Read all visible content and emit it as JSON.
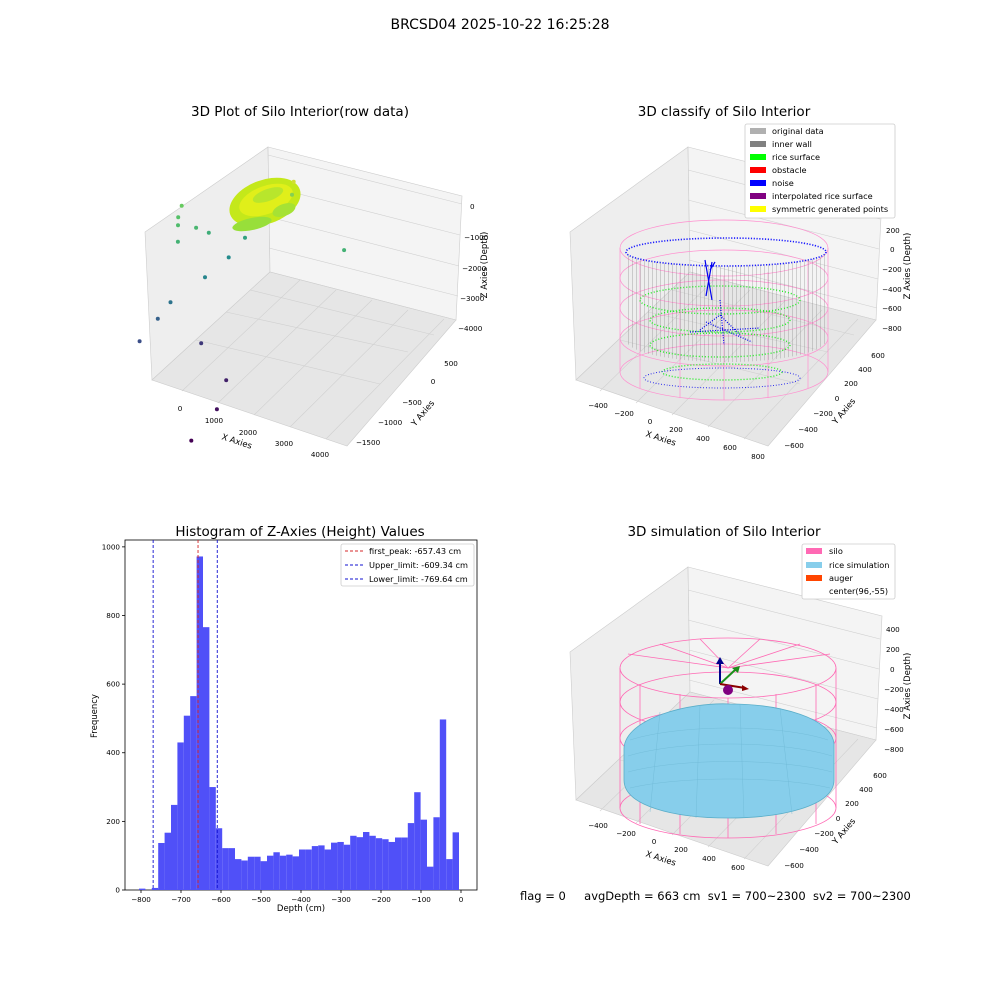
{
  "suptitle": "BRCSD04 2025-10-22 16:25:28",
  "status": {
    "flag": "flag = 0",
    "avg_depth": "avgDepth = 663 cm",
    "sv1": "sv1 = 700~2300",
    "sv2": "sv2 = 700~2300"
  },
  "colors": {
    "histogram_bar": "#5050f8",
    "first_peak": "#d62728",
    "limits": "#1010d0",
    "original_data": "#b0b0b0",
    "inner_wall": "#808080",
    "rice_surface": "#00ff00",
    "obstacle": "#ff0000",
    "noise": "#0000ff",
    "interpolated_rice_surface": "#800080",
    "symmetric_generated_points": "#ffff00",
    "silo": "#ff69b4",
    "rice_simulation": "#87ceeb",
    "auger": "#ff4500"
  },
  "chart_data": [
    {
      "type": "scatter",
      "title": "3D Plot of Silo Interior(row data)",
      "xlabel": "X Axies",
      "ylabel": "Y Axies",
      "zlabel": "Z Axies (Depth)",
      "x_ticks": [
        "0",
        "1000",
        "2000",
        "3000",
        "4000"
      ],
      "y_ticks": [
        "500",
        "0",
        "−500",
        "−1000",
        "−1500"
      ],
      "z_ticks": [
        "0",
        "−1000",
        "−2000",
        "−3000",
        "−4000"
      ],
      "points": [
        {
          "x": 200,
          "y": -100,
          "z": -1000
        },
        {
          "x": 180,
          "y": -150,
          "z": -1200
        },
        {
          "x": 250,
          "y": -200,
          "z": -1300
        },
        {
          "x": 400,
          "y": -300,
          "z": -1500
        },
        {
          "x": 600,
          "y": -100,
          "z": -1400
        },
        {
          "x": 800,
          "y": 0,
          "z": -1600
        },
        {
          "x": 1500,
          "y": 200,
          "z": -1800
        },
        {
          "x": 1200,
          "y": 100,
          "z": -2200
        },
        {
          "x": 1000,
          "y": -200,
          "z": -2300
        },
        {
          "x": 500,
          "y": -500,
          "z": -2600
        },
        {
          "x": 300,
          "y": -600,
          "z": -2900
        },
        {
          "x": 100,
          "y": -800,
          "z": -3200
        },
        {
          "x": 1200,
          "y": -400,
          "z": -3500
        },
        {
          "x": 2200,
          "y": -600,
          "z": -3800
        },
        {
          "x": 2400,
          "y": -900,
          "z": -4000
        },
        {
          "x": 2300,
          "y": -1300,
          "z": -4200
        },
        {
          "x": 4100,
          "y": 300,
          "z": -1500
        },
        {
          "x": 2500,
          "y": 400,
          "z": -800
        },
        {
          "x": 2700,
          "y": 300,
          "z": -300
        }
      ]
    },
    {
      "type": "scatter",
      "title": "3D classify of Silo Interior",
      "xlabel": "X Axies",
      "ylabel": "Y Axies",
      "zlabel": "Z Axies (Depth)",
      "x_ticks": [
        "−400",
        "−200",
        "0",
        "200",
        "400",
        "600",
        "800"
      ],
      "y_ticks": [
        "600",
        "400",
        "200",
        "0",
        "−200",
        "−400",
        "−600"
      ],
      "z_ticks": [
        "200",
        "0",
        "−200",
        "−400",
        "−600",
        "−800"
      ],
      "legend": [
        "original data",
        "inner wall",
        "rice surface",
        "obstacle",
        "noise",
        "interpolated rice surface",
        "symmetric generated points"
      ]
    },
    {
      "type": "bar",
      "title": "Histogram of Z-Axies (Height) Values",
      "xlabel": "Depth (cm)",
      "ylabel": "Frequency",
      "xlim": [
        -840,
        40
      ],
      "ylim": [
        0,
        1020
      ],
      "x_ticks": [
        -800,
        -700,
        -600,
        -500,
        -400,
        -300,
        -200,
        -100,
        0
      ],
      "y_ticks": [
        0,
        200,
        400,
        600,
        800,
        1000
      ],
      "bin_start": -805,
      "bin_width": 16,
      "values": [
        4,
        0,
        6,
        137,
        167,
        248,
        430,
        508,
        565,
        972,
        766,
        300,
        180,
        122,
        122,
        90,
        86,
        97,
        97,
        84,
        100,
        110,
        100,
        103,
        98,
        118,
        118,
        128,
        130,
        118,
        138,
        140,
        132,
        158,
        154,
        169,
        158,
        151,
        148,
        140,
        153,
        153,
        195,
        285,
        205,
        68,
        212,
        497,
        90,
        168
      ],
      "lines": [
        {
          "label": "first_peak: -657.43 cm",
          "x": -657.43,
          "color": "#d62728"
        },
        {
          "label": "Upper_limit: -609.34 cm",
          "x": -609.34,
          "color": "#1010d0"
        },
        {
          "label": "Lower_limit: -769.64 cm",
          "x": -769.64,
          "color": "#1010d0"
        }
      ],
      "legend_position": "top-right"
    },
    {
      "type": "surface",
      "title": "3D simulation of Silo Interior",
      "xlabel": "X Axies",
      "ylabel": "Y Axies",
      "zlabel": "Z Axies (Depth)",
      "x_ticks": [
        "−400",
        "−200",
        "0",
        "200",
        "400",
        "600"
      ],
      "y_ticks": [
        "600",
        "400",
        "200",
        "0",
        "−200",
        "−400",
        "−600"
      ],
      "z_ticks": [
        "400",
        "200",
        "0",
        "−200",
        "−400",
        "−600",
        "−800"
      ],
      "legend": [
        "silo",
        "rice simulation",
        "auger",
        "center(96,-55)"
      ]
    }
  ]
}
